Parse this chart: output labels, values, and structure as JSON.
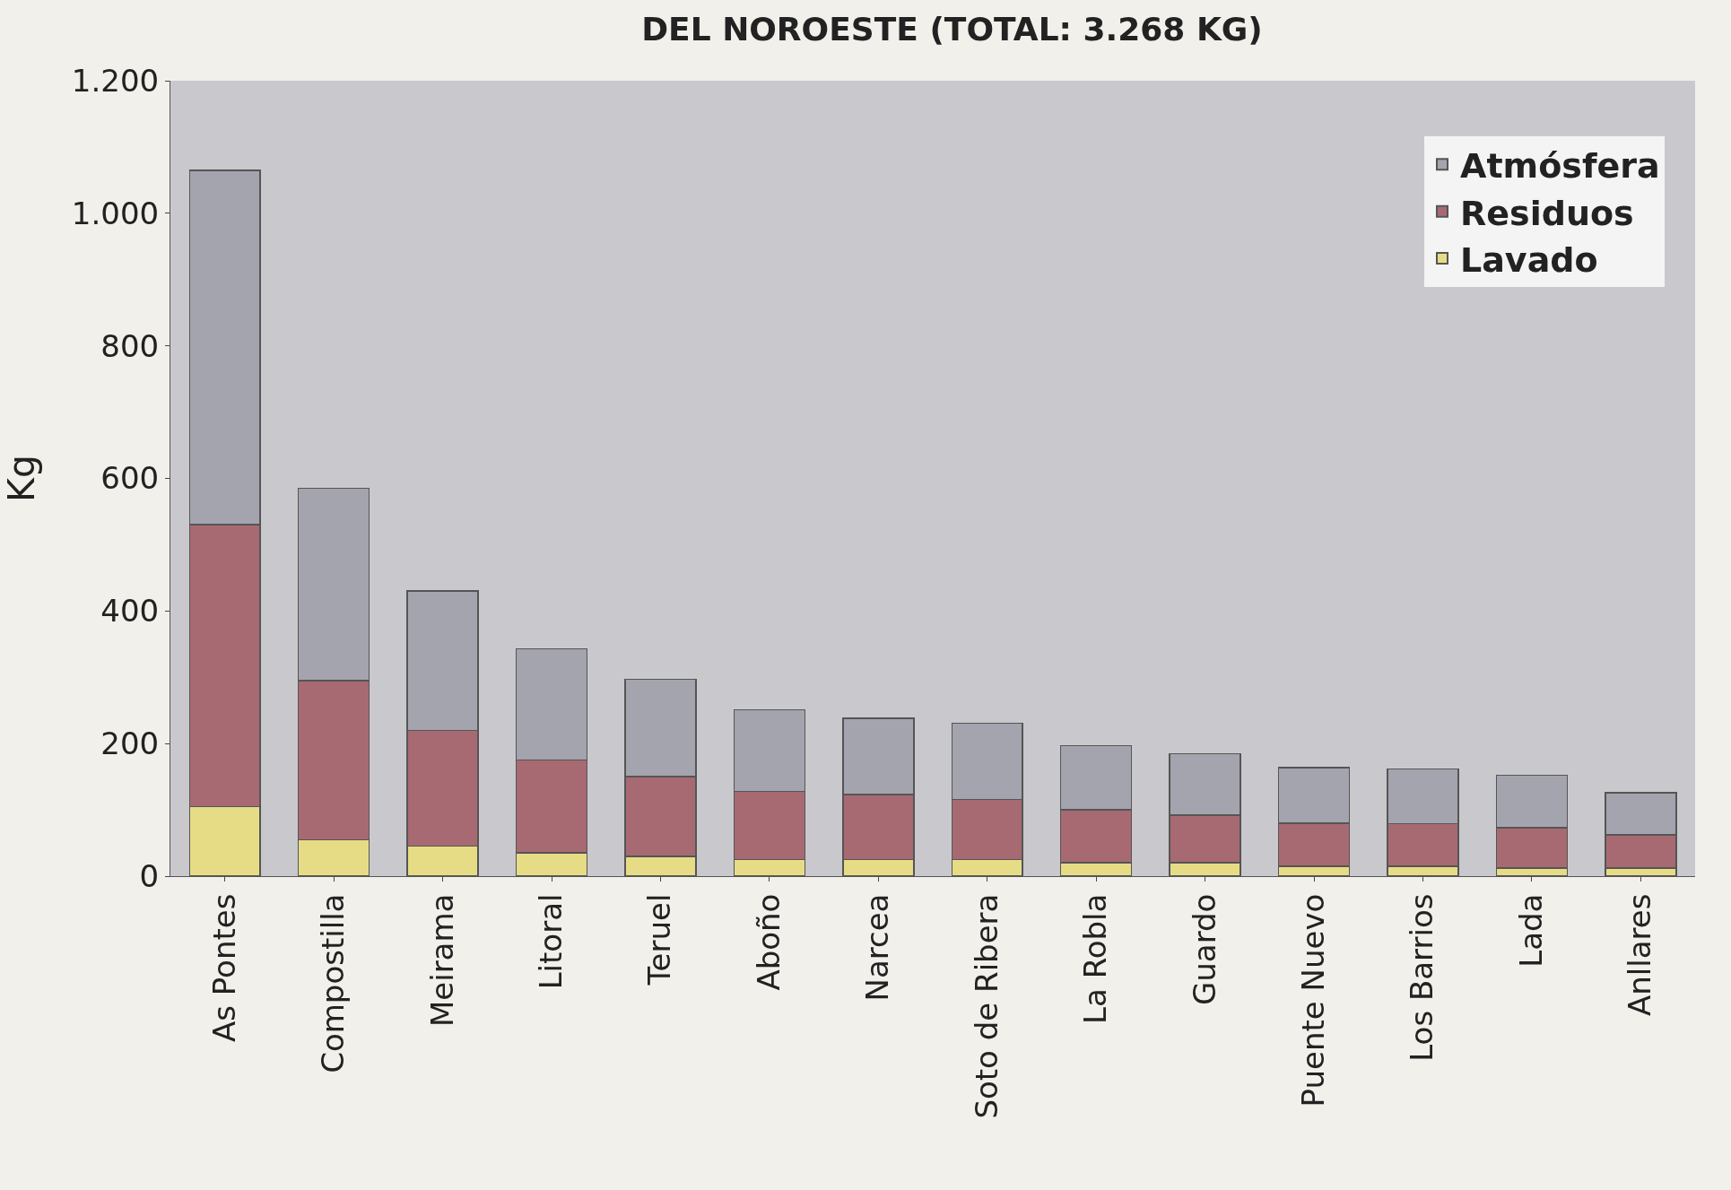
{
  "chart_data": {
    "type": "bar",
    "title": "DEL NOROESTE (TOTAL: 3.268 KG)",
    "ylabel": "Kg",
    "stacked": true,
    "legend": "top right",
    "grid": false,
    "categories": [
      "As Pontes",
      "Compostilla",
      "Meirama",
      "Litoral",
      "Teruel",
      "Aboño",
      "Narcea",
      "Soto de Ribera",
      "La Robla",
      "Guardo",
      "Puente Nuevo",
      "Los Barrios",
      "Lada",
      "Anllares"
    ],
    "series": [
      {
        "name": "Lavado",
        "color": "#e6dc86",
        "values": [
          105,
          55,
          45,
          35,
          30,
          25,
          25,
          25,
          20,
          20,
          15,
          15,
          12,
          12
        ]
      },
      {
        "name": "Residuos",
        "color": "#a86a72",
        "values": [
          425,
          240,
          175,
          140,
          120,
          103,
          98,
          91,
          80,
          72,
          65,
          64,
          61,
          50
        ]
      },
      {
        "name": "Atmósfera",
        "color": "#a4a4ae",
        "values": [
          535,
          290,
          210,
          168,
          147,
          123,
          115,
          115,
          97,
          93,
          84,
          83,
          79,
          64
        ]
      }
    ],
    "ylim": [
      0,
      1200
    ],
    "yticks": [
      0,
      200,
      400,
      600,
      800,
      {
        "value": 1000,
        "label": "1.000"
      },
      {
        "value": 1200,
        "label": "1.200"
      }
    ]
  }
}
